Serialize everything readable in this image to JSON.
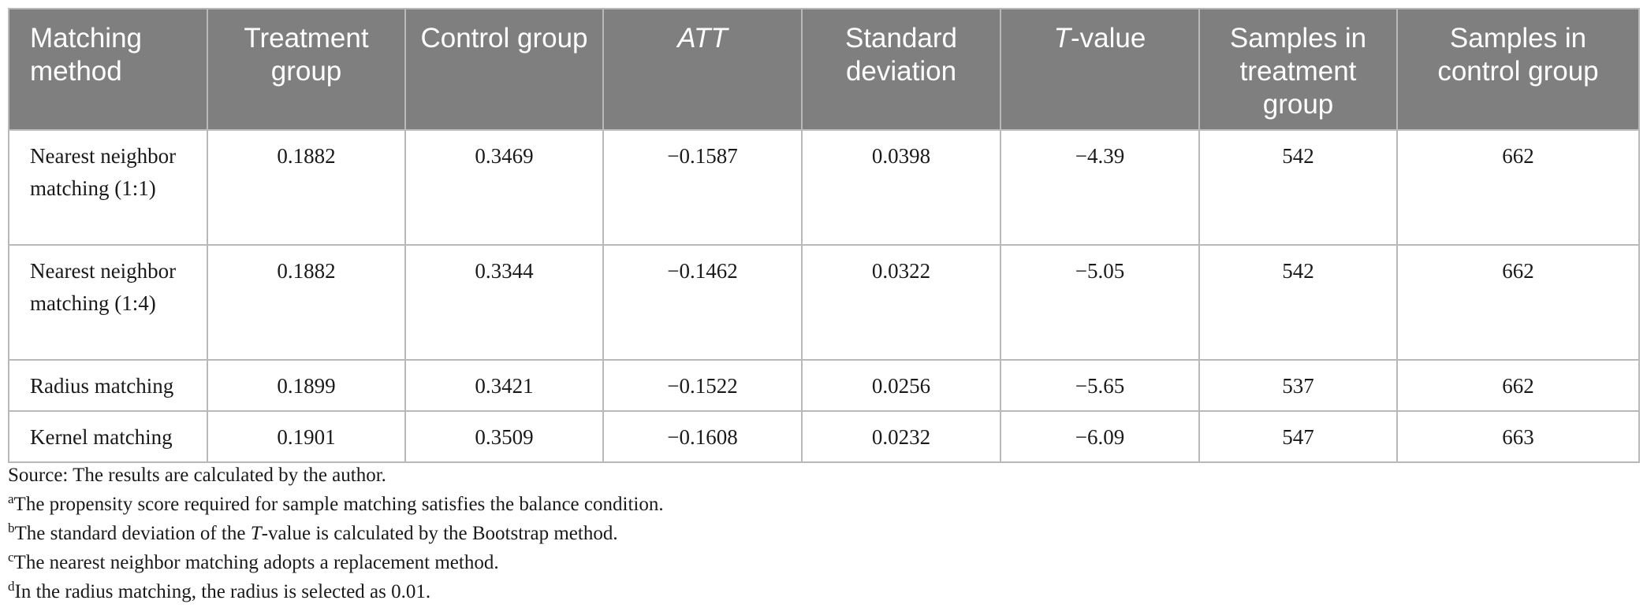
{
  "table": {
    "headers": [
      "Matching method",
      "Treatment group",
      "Control group",
      "ATT",
      "Standard deviation",
      "T-value",
      "Samples in treatment group",
      "Samples in control group"
    ],
    "header_t_prefix": "T",
    "header_t_suffix": "-value",
    "rows": [
      {
        "method": "Nearest neighbor matching (1:1)",
        "treatment": "0.1882",
        "control": "0.3469",
        "att": "−0.1587",
        "sd": "0.0398",
        "t_value": "−4.39",
        "samples_treatment": "542",
        "samples_control": "662"
      },
      {
        "method": "Nearest neighbor matching (1:4)",
        "treatment": "0.1882",
        "control": "0.3344",
        "att": "−0.1462",
        "sd": "0.0322",
        "t_value": "−5.05",
        "samples_treatment": "542",
        "samples_control": "662"
      },
      {
        "method": "Radius matching",
        "treatment": "0.1899",
        "control": "0.3421",
        "att": "−0.1522",
        "sd": "0.0256",
        "t_value": "−5.65",
        "samples_treatment": "537",
        "samples_control": "662"
      },
      {
        "method": "Kernel matching",
        "treatment": "0.1901",
        "control": "0.3509",
        "att": "−0.1608",
        "sd": "0.0232",
        "t_value": "−6.09",
        "samples_treatment": "547",
        "samples_control": "663"
      }
    ]
  },
  "notes": {
    "source": "Source: The results are calculated by the author.",
    "a_mark": "a",
    "a_text": "The propensity score required for sample matching satisfies the balance condition.",
    "b_mark": "b",
    "b_text_1": "The standard deviation of the ",
    "b_text_t": "T",
    "b_text_2": "-value is calculated by the Bootstrap method.",
    "c_mark": "c",
    "c_text": "The nearest neighbor matching adopts a replacement method.",
    "d_mark": "d",
    "d_text": "In the radius matching, the radius is selected as 0.01."
  }
}
